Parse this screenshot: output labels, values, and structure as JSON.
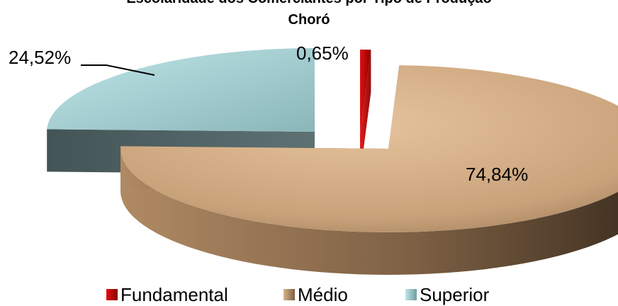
{
  "chart_data": {
    "type": "pie",
    "title_line1": "Escolaridade dos Comerciantes por Tipo de Produção",
    "title_line2": "Choró",
    "categories": [
      "Fundamental",
      "Médio",
      "Superior"
    ],
    "values": [
      0.65,
      74.84,
      24.52
    ],
    "labels": [
      "0,65%",
      "74,84%",
      "24,52%"
    ],
    "colors": [
      "#c00000",
      "#c9a27a",
      "#a9dcdf"
    ],
    "legend_position": "bottom",
    "style": "3d-exploded"
  }
}
